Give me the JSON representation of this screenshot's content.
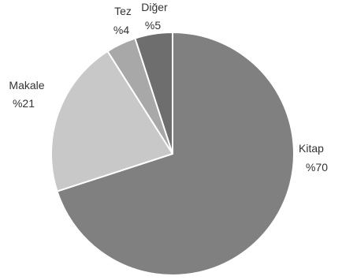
{
  "chart_data": {
    "type": "pie",
    "title": "",
    "slices": [
      {
        "name": "Kitap",
        "value": 70,
        "label": "%70",
        "color": "#808080"
      },
      {
        "name": "Makale",
        "value": 21,
        "label": "%21",
        "color": "#c8c8c8"
      },
      {
        "name": "Tez",
        "value": 4,
        "label": "%4",
        "color": "#a8a8a8"
      },
      {
        "name": "Diğer",
        "value": 5,
        "label": "%5",
        "color": "#6e6e6e"
      }
    ],
    "start": "12 o'clock",
    "direction": "clockwise",
    "legend": "none",
    "data_labels": "outside"
  }
}
